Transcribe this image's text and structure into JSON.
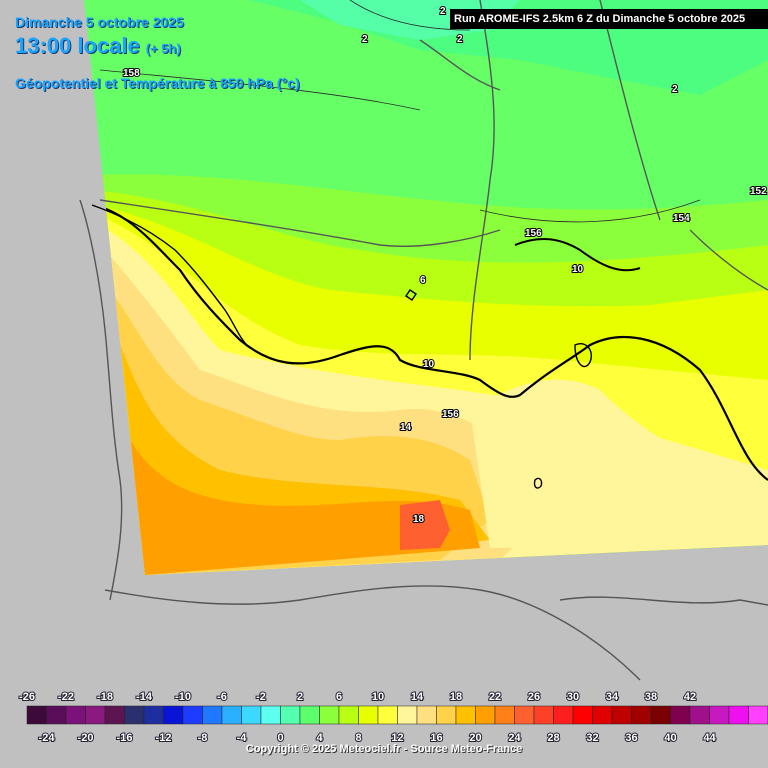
{
  "header": {
    "date": "Dimanche 5 octobre 2025",
    "time": "13:00 locale",
    "step": "(+ 5h)",
    "parameter": "Géopotentiel et Température à 850 hPa (°c)"
  },
  "run_info": "Run AROME-IFS 2.5km 6 Z du Dimanche 5 octobre 2025",
  "map_labels": [
    "2",
    "2",
    "2",
    "2",
    "158",
    "152",
    "154",
    "156",
    "10",
    "6",
    "10",
    "14",
    "156",
    "18"
  ],
  "legend": {
    "upper_ticks": [
      "-26",
      "-22",
      "-18",
      "-14",
      "-10",
      "-6",
      "-2",
      "2",
      "6",
      "10",
      "14",
      "18",
      "22",
      "26",
      "30",
      "34",
      "38",
      "42"
    ],
    "lower_ticks": [
      "-24",
      "-20",
      "-16",
      "-12",
      "-8",
      "-4",
      "0",
      "4",
      "8",
      "12",
      "16",
      "20",
      "24",
      "28",
      "32",
      "36",
      "40",
      "44"
    ],
    "colors": [
      "#3d0a3a",
      "#5a0e5a",
      "#7a127a",
      "#8a1a80",
      "#5c1550",
      "#2a2f6e",
      "#1c2ea0",
      "#0a14d6",
      "#1e3cff",
      "#1f78ff",
      "#2bb0ff",
      "#3cd8ff",
      "#5dfff0",
      "#54ffb0",
      "#5cff6c",
      "#8cff3c",
      "#b8ff14",
      "#e8ff00",
      "#ffff3c",
      "#fff59a",
      "#ffe080",
      "#ffd24a",
      "#ffc000",
      "#ffa000",
      "#ff8018",
      "#ff6030",
      "#ff4028",
      "#ff1e1e",
      "#ff0000",
      "#e00000",
      "#c00000",
      "#a00000",
      "#7a0000",
      "#800050",
      "#a0108a",
      "#c818c0",
      "#ee10ee",
      "#ff40ff",
      "#ff80ff",
      "#ffa8ff"
    ]
  },
  "copyright": "Copyright © 2025 Meteociel.fr - Source Meteo-France"
}
